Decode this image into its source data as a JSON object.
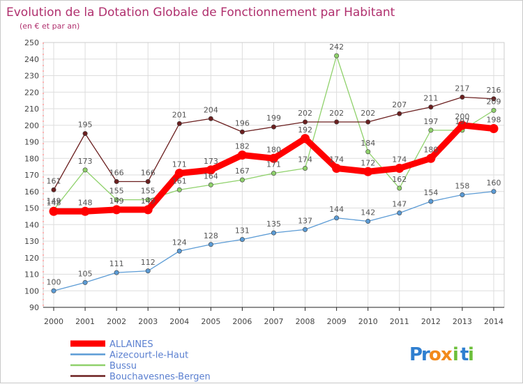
{
  "chart_data": {
    "type": "line",
    "title": "Evolution de la Dotation Globale de Fonctionnement par Habitant",
    "subtitle": "(en € et par an)",
    "x": [
      "2000",
      "2001",
      "2002",
      "2003",
      "2004",
      "2005",
      "2006",
      "2007",
      "2008",
      "2009",
      "2010",
      "2011",
      "2012",
      "2013",
      "2014"
    ],
    "ylim": [
      90,
      250
    ],
    "yticks": [
      90,
      100,
      110,
      120,
      130,
      140,
      150,
      160,
      170,
      180,
      190,
      200,
      210,
      220,
      230,
      240,
      250
    ],
    "grid": true,
    "legend_position": "bottom-left",
    "series": [
      {
        "name": "ALLAINES",
        "color": "#ff0000",
        "values": [
          148,
          148,
          149,
          149,
          171,
          173,
          182,
          180,
          192,
          174,
          172,
          174,
          180,
          200,
          198
        ]
      },
      {
        "name": "Aizecourt-le-Haut",
        "color": "#5b9bd5",
        "values": [
          100,
          105,
          111,
          112,
          124,
          128,
          131,
          135,
          137,
          144,
          142,
          147,
          154,
          158,
          160
        ]
      },
      {
        "name": "Bussu",
        "color": "#8fd16b",
        "values": [
          149,
          173,
          155,
          155,
          161,
          164,
          167,
          171,
          174,
          242,
          184,
          162,
          197,
          197,
          209
        ]
      },
      {
        "name": "Bouchavesnes-Bergen",
        "color": "#6b1f1f",
        "values": [
          161,
          195,
          166,
          166,
          201,
          204,
          196,
          199,
          202,
          202,
          202,
          207,
          211,
          217,
          216
        ]
      }
    ]
  },
  "logo": {
    "text": "Proxiti",
    "letters": [
      "P",
      "r",
      "o",
      "x",
      "i",
      "t",
      "i"
    ],
    "colors": [
      "#2f7fd0",
      "#2f7fd0",
      "#f28a1c",
      "#f28a1c",
      "#6cbf3a",
      "#2f7fd0",
      "#6cbf3a"
    ]
  }
}
